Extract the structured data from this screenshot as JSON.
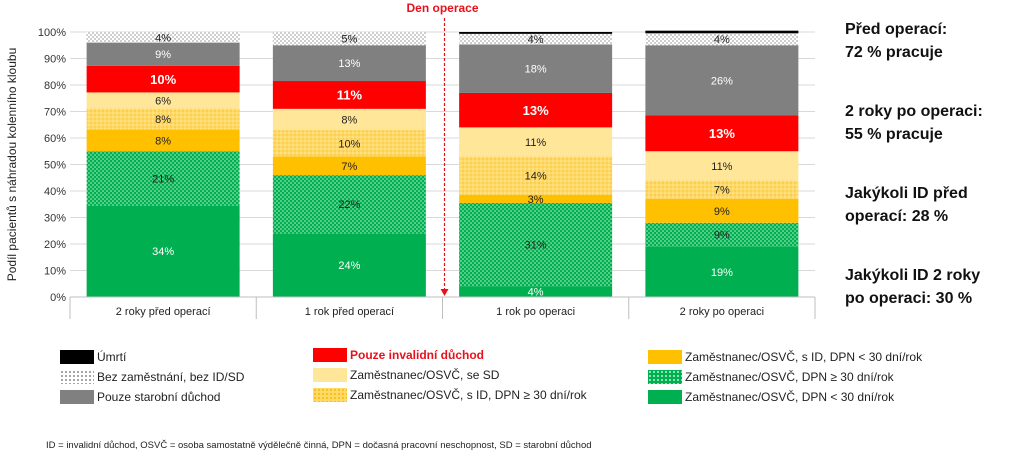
{
  "chart_data": {
    "type": "bar",
    "stacked": true,
    "title": "",
    "ylabel": "Podíl pacientů s náhradou kolenního kloubu",
    "xlabel": "",
    "ylim": [
      0,
      100
    ],
    "yticks": [
      "0%",
      "10%",
      "20%",
      "30%",
      "40%",
      "50%",
      "60%",
      "70%",
      "80%",
      "90%",
      "100%"
    ],
    "categories": [
      "2 roky před operací",
      "1 rok před operací",
      "1 rok po operaci",
      "2 roky po operaci"
    ],
    "annotation": "Den operace",
    "series": [
      {
        "name": "Zaměstnanec/OSVČ, DPN < 30 dní/rok",
        "key": "emp_lt30",
        "color": "#00b050",
        "pattern": "solid",
        "values": [
          34.5,
          24,
          4,
          19
        ],
        "labels": [
          "34%",
          "24%",
          "4%",
          "19%"
        ]
      },
      {
        "name": "Zaměstnanec/OSVČ, DPN ≥ 30 dní/rok",
        "key": "emp_ge30",
        "color": "#00b050",
        "pattern": "dots",
        "values": [
          20.5,
          22,
          31.5,
          9
        ],
        "labels": [
          "21%",
          "22%",
          "31%",
          "9%"
        ]
      },
      {
        "name": "Zaměstnanec/OSVČ, s ID, DPN < 30 dní/rok",
        "key": "id_lt30",
        "color": "#ffc000",
        "pattern": "solid",
        "values": [
          8.2,
          7,
          3,
          9
        ],
        "labels": [
          "8%",
          "7%",
          "3%",
          "9%"
        ]
      },
      {
        "name": "Zaměstnanec/OSVČ, s ID, DPN ≥ 30 dní/rok",
        "key": "id_ge30",
        "color": "#ffd966",
        "pattern": "dots",
        "values": [
          8,
          10,
          14.5,
          7
        ],
        "labels": [
          "8%",
          "10%",
          "14%",
          "7%"
        ]
      },
      {
        "name": "Zaměstnanec/OSVČ, se SD",
        "key": "emp_sd",
        "color": "#ffe699",
        "pattern": "solid",
        "values": [
          6,
          8,
          11,
          11
        ],
        "labels": [
          "6%",
          "8%",
          "11%",
          "11%"
        ]
      },
      {
        "name": "Pouze invalidní důchod",
        "key": "disab",
        "color": "#ff0000",
        "pattern": "solid",
        "values": [
          10,
          10.5,
          13,
          13.5
        ],
        "labels": [
          "10%",
          "11%",
          "13%",
          "13%"
        ]
      },
      {
        "name": "Pouze starobní důchod",
        "key": "oldage",
        "color": "#808080",
        "pattern": "solid",
        "values": [
          8.8,
          13.5,
          18.3,
          26.5
        ],
        "labels": [
          "9%",
          "13%",
          "18%",
          "26%"
        ]
      },
      {
        "name": "Bez zaměstnání, bez ID/SD",
        "key": "unemp",
        "color": "#ffffff",
        "pattern": "dots-dark",
        "values": [
          4,
          5,
          4,
          4.5
        ],
        "labels": [
          "4%",
          "5%",
          "4%",
          "4%"
        ]
      },
      {
        "name": "Úmrtí",
        "key": "death",
        "color": "#000000",
        "pattern": "solid",
        "values": [
          0,
          0,
          0.7,
          1
        ],
        "labels": [
          "",
          "",
          "",
          ""
        ]
      }
    ]
  },
  "side_notes": [
    "Před operací:\n72 % pracuje",
    "2 roky po operaci:\n55 % pracuje",
    "Jakýkoli ID před\noperací: 28 %",
    "Jakýkoli ID 2 roky\npo operaci: 30 %"
  ],
  "legend": {
    "death": "Úmrtí",
    "unemp": "Bez zaměstnání, bez ID/SD",
    "oldage": "Pouze starobní důchod",
    "disab": "Pouze invalidní důchod",
    "emp_sd": "Zaměstnanec/OSVČ, se SD",
    "id_ge30": "Zaměstnanec/OSVČ, s ID, DPN ≥ 30 dní/rok",
    "id_lt30": "Zaměstnanec/OSVČ, s ID, DPN < 30 dní/rok",
    "emp_ge30": "Zaměstnanec/OSVČ, DPN ≥ 30 dní/rok",
    "emp_lt30": "Zaměstnanec/OSVČ, DPN < 30 dní/rok"
  },
  "footnote": "ID = invalidní důchod, OSVČ = osoba samostatně výdělečně činná, DPN = dočasná pracovní neschopnost, SD = starobní důchod",
  "colors": {
    "red": "#e8111b",
    "green": "#00b050",
    "orange": "#ffc000",
    "light_yellow": "#ffe699",
    "grey": "#808080"
  }
}
